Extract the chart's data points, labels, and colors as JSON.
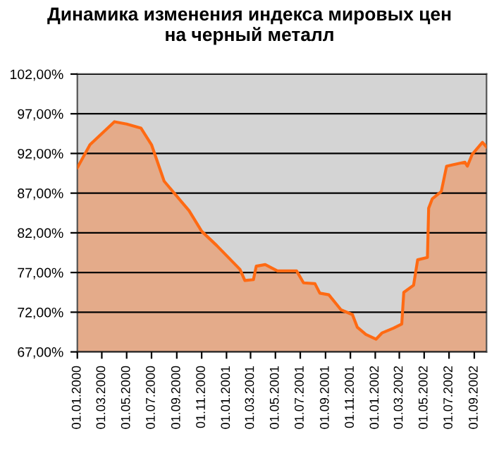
{
  "chart_data": {
    "type": "area",
    "title": "Динамика изменения индекса мировых цен\nна черный металл",
    "x": [
      "2000-01-01",
      "2000-02-01",
      "2000-04-01",
      "2000-05-01",
      "2000-06-05",
      "2000-07-01",
      "2000-08-01",
      "2000-10-01",
      "2000-11-01",
      "2000-12-08",
      "2001-02-03",
      "2001-02-15",
      "2001-03-08",
      "2001-03-15",
      "2001-04-06",
      "2001-05-06",
      "2001-06-22",
      "2001-07-09",
      "2001-08-06",
      "2001-08-18",
      "2001-09-09",
      "2001-10-09",
      "2001-11-06",
      "2001-11-18",
      "2001-12-09",
      "2002-01-03",
      "2002-01-18",
      "2002-02-15",
      "2002-03-07",
      "2002-03-12",
      "2002-04-05",
      "2002-04-15",
      "2002-05-09",
      "2002-05-12",
      "2002-05-21",
      "2002-06-12",
      "2002-06-25",
      "2002-07-12",
      "2002-08-09",
      "2002-08-15",
      "2002-08-27",
      "2002-09-21",
      "2002-10-01"
    ],
    "series": [
      {
        "color": "#ff6a13",
        "values": [
          90.2,
          93.1,
          96.0,
          95.7,
          95.2,
          93.1,
          88.5,
          84.8,
          82.2,
          80.4,
          77.4,
          76.0,
          76.1,
          77.8,
          78.0,
          77.2,
          77.2,
          75.7,
          75.6,
          74.4,
          74.2,
          72.3,
          71.7,
          70.1,
          69.2,
          68.6,
          69.4,
          70.0,
          70.5,
          74.5,
          75.4,
          78.6,
          78.9,
          85.1,
          86.3,
          87.2,
          90.4,
          90.6,
          90.9,
          90.4,
          91.9,
          93.4,
          92.8
        ]
      }
    ],
    "xlim": [
      "2000-01-01",
      "2002-10-01"
    ],
    "xticks": [
      {
        "value": "2000-01-01",
        "label": "01.01.2000"
      },
      {
        "value": "2000-03-01",
        "label": "01.03.2000"
      },
      {
        "value": "2000-05-01",
        "label": "01.05.2000"
      },
      {
        "value": "2000-07-01",
        "label": "01.07.2000"
      },
      {
        "value": "2000-09-01",
        "label": "01.09.2000"
      },
      {
        "value": "2000-11-01",
        "label": "01.11.2000"
      },
      {
        "value": "2001-01-01",
        "label": "01.01.2001"
      },
      {
        "value": "2001-03-01",
        "label": "01.03.2001"
      },
      {
        "value": "2001-05-01",
        "label": "01.05.2001"
      },
      {
        "value": "2001-07-01",
        "label": "01.07.2001"
      },
      {
        "value": "2001-09-01",
        "label": "01.09.2001"
      },
      {
        "value": "2001-11-01",
        "label": "01.11.2001"
      },
      {
        "value": "2002-01-01",
        "label": "01.01.2002"
      },
      {
        "value": "2002-03-01",
        "label": "01.03.2002"
      },
      {
        "value": "2002-05-01",
        "label": "01.05.2002"
      },
      {
        "value": "2002-07-01",
        "label": "01.07.2002"
      },
      {
        "value": "2002-09-01",
        "label": "01.09.2002"
      }
    ],
    "ylim": [
      67,
      102
    ],
    "yticks": [
      {
        "value": 67,
        "label": "67,00%"
      },
      {
        "value": 72,
        "label": "72,00%"
      },
      {
        "value": 77,
        "label": "77,00%"
      },
      {
        "value": 82,
        "label": "82,00%"
      },
      {
        "value": 87,
        "label": "87,00%"
      },
      {
        "value": 92,
        "label": "92,00%"
      },
      {
        "value": 97,
        "label": "97,00%"
      },
      {
        "value": 102,
        "label": "102,00%"
      }
    ],
    "grid": "y"
  }
}
